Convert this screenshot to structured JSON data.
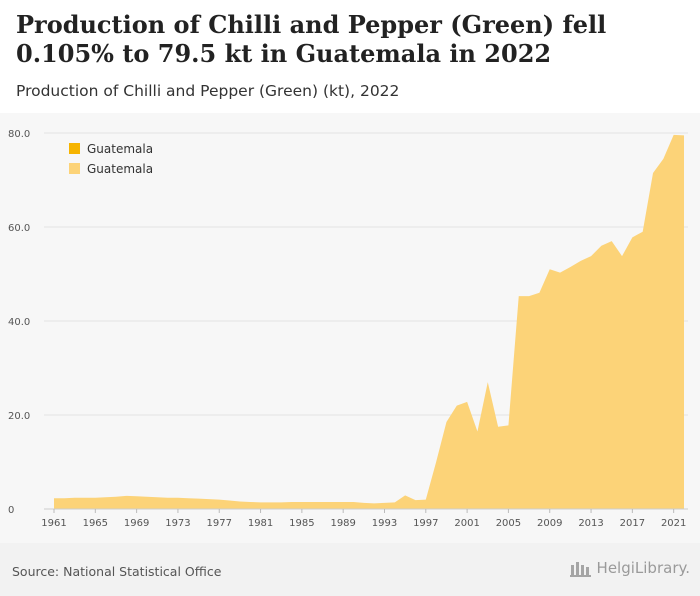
{
  "header": {
    "title": "Production of Chilli and Pepper (Green) fell 0.105% to 79.5 kt in Guatemala in 2022",
    "subtitle": "Production of Chilli and Pepper (Green) (kt), 2022"
  },
  "footer": {
    "source": "Source: National Statistical Office",
    "brand": "HelgiLibrary."
  },
  "colors": {
    "area_fill": "#fcd378",
    "legend_dark": "#f6b400",
    "legend_light": "#fcd378",
    "grid": "#e3e3e3",
    "axis_text": "#555555"
  },
  "chart_data": {
    "type": "area",
    "title": "Production of Chilli and Pepper (Green) (kt), 2022",
    "xlabel": "",
    "ylabel": "",
    "xlim": [
      1961,
      2022
    ],
    "ylim": [
      0,
      80
    ],
    "yticks": [
      0,
      20,
      40,
      60,
      80
    ],
    "ytick_labels": [
      "0",
      "20.0",
      "40.0",
      "60.0",
      "80.0"
    ],
    "xticks": [
      1961,
      1965,
      1969,
      1973,
      1977,
      1981,
      1985,
      1989,
      1993,
      1997,
      2001,
      2005,
      2009,
      2013,
      2017,
      2021
    ],
    "grid": true,
    "legend": [
      "Guatemala",
      "Guatemala"
    ],
    "legend_position": "top-left",
    "x": [
      1961,
      1962,
      1963,
      1964,
      1965,
      1966,
      1967,
      1968,
      1969,
      1970,
      1971,
      1972,
      1973,
      1974,
      1975,
      1976,
      1977,
      1978,
      1979,
      1980,
      1981,
      1982,
      1983,
      1984,
      1985,
      1986,
      1987,
      1988,
      1989,
      1990,
      1991,
      1992,
      1993,
      1994,
      1995,
      1996,
      1997,
      1998,
      1999,
      2000,
      2001,
      2002,
      2003,
      2004,
      2005,
      2006,
      2007,
      2008,
      2009,
      2010,
      2011,
      2012,
      2013,
      2014,
      2015,
      2016,
      2017,
      2018,
      2019,
      2020,
      2021,
      2022
    ],
    "series": [
      {
        "name": "Guatemala",
        "values": [
          2.3,
          2.3,
          2.4,
          2.4,
          2.4,
          2.5,
          2.6,
          2.8,
          2.7,
          2.6,
          2.5,
          2.4,
          2.4,
          2.3,
          2.2,
          2.1,
          2.0,
          1.8,
          1.6,
          1.5,
          1.4,
          1.4,
          1.4,
          1.5,
          1.5,
          1.5,
          1.5,
          1.5,
          1.5,
          1.5,
          1.3,
          1.2,
          1.3,
          1.4,
          2.9,
          1.9,
          2.0,
          10.0,
          18.5,
          22.0,
          22.8,
          16.5,
          27.0,
          17.5,
          17.8,
          45.3,
          45.3,
          46.0,
          51.0,
          50.3,
          51.5,
          52.8,
          53.8,
          56.0,
          57.0,
          53.8,
          57.8,
          59.0,
          71.5,
          74.5,
          79.6,
          79.5
        ]
      }
    ]
  }
}
